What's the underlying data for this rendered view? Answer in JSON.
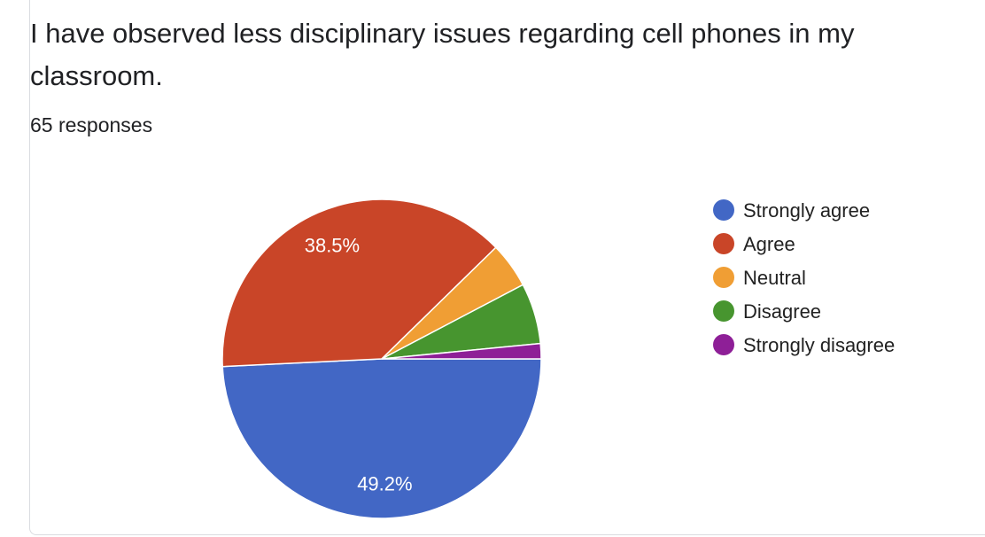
{
  "question": {
    "title": "I have observed less disciplinary issues regarding cell phones in my classroom.",
    "response_count": "65 responses"
  },
  "chart_data": {
    "type": "pie",
    "total_responses": 65,
    "legend_position": "right",
    "slices": [
      {
        "label": "Strongly agree",
        "value": 32,
        "percent_label": "49.2%",
        "color": "#4267c5"
      },
      {
        "label": "Agree",
        "value": 25,
        "percent_label": "38.5%",
        "color": "#c94528"
      },
      {
        "label": "Neutral",
        "value": 3,
        "percent_label": "",
        "color": "#f09e34"
      },
      {
        "label": "Disagree",
        "value": 4,
        "percent_label": "",
        "color": "#47952f"
      },
      {
        "label": "Strongly disagree",
        "value": 1,
        "percent_label": "",
        "color": "#8e1f97"
      }
    ]
  }
}
